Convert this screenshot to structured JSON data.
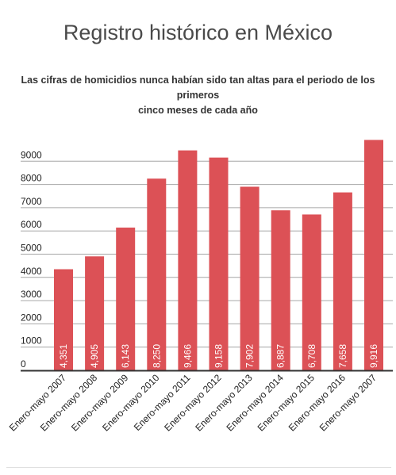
{
  "header": {
    "title": "Registro histórico en México",
    "subtitle_line1": "Las cifras de homicidios nunca habían sido tan altas para el periodo de los primeros",
    "subtitle_line2": "cinco meses de cada año"
  },
  "chart_data": {
    "type": "bar",
    "title": "Registro histórico en México",
    "subtitle": "Las cifras de homicidios nunca habían sido tan altas para el periodo de los primeros cinco meses de cada año",
    "categories": [
      "Enero-mayo 2007",
      "Enero-mayo 2008",
      "Enero-mayo 2009",
      "Enero-mayo 2010",
      "Enero-mayo 2011",
      "Enero-mayo 2012",
      "Enero-mayo 2013",
      "Enero-mayo 2014",
      "Enero-mayo 2015",
      "Enero-mayo 2016",
      "Enero-mayo 2007"
    ],
    "values": [
      4351,
      4905,
      6143,
      8250,
      9466,
      9158,
      7902,
      6887,
      6708,
      7658,
      9916
    ],
    "value_labels": [
      "4,351",
      "4,905",
      "6,143",
      "8,250",
      "9,466",
      "9,158",
      "7,902",
      "6,887",
      "6,708",
      "7,658",
      "9,916"
    ],
    "yticks": [
      0,
      1000,
      2000,
      3000,
      4000,
      5000,
      6000,
      7000,
      8000,
      9000
    ],
    "ylim": [
      0,
      10000
    ],
    "xlabel": "",
    "ylabel": "",
    "grid": true,
    "legend": "none",
    "colors": {
      "bar": "#dc5156",
      "grid": "#a6a6a6",
      "axis": "#333333",
      "tick_text": "#222222",
      "label_text": "#ffffff"
    }
  }
}
